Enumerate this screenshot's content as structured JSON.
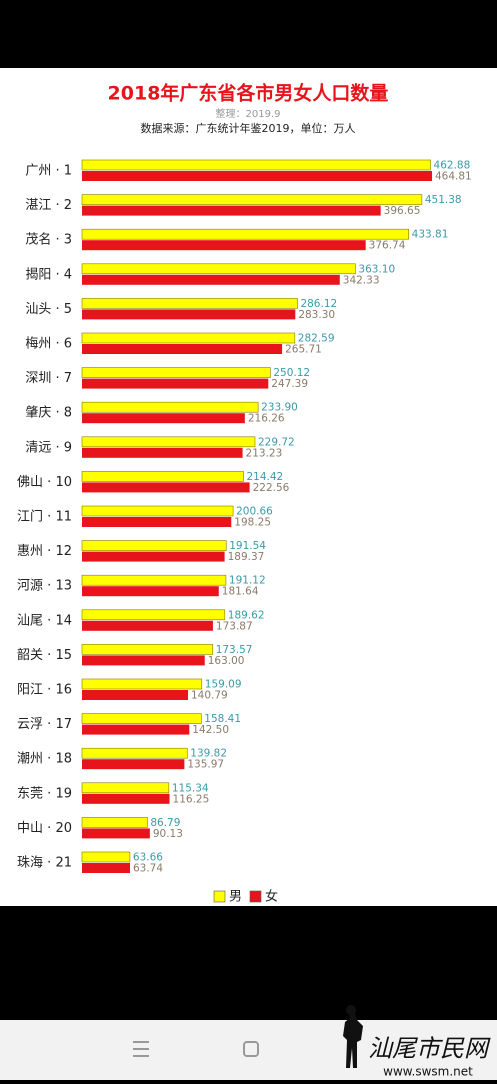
{
  "chart_data": {
    "type": "bar",
    "orientation": "horizontal",
    "title": "2018年广东省各市男女人口数量",
    "subtitle": "整理：2019.9",
    "source": "数据来源：广东统计年鉴2019，单位：万人",
    "categories": [
      "广州 · 1",
      "湛江 · 2",
      "茂名 · 3",
      "揭阳 · 4",
      "汕头 · 5",
      "梅州 · 6",
      "深圳 · 7",
      "肇庆 · 8",
      "清远 · 9",
      "佛山 · 10",
      "江门 · 11",
      "惠州 · 12",
      "河源 · 13",
      "汕尾 · 14",
      "韶关 · 15",
      "阳江 · 16",
      "云浮 · 17",
      "潮州 · 18",
      "东莞 · 19",
      "中山 · 20",
      "珠海 · 21"
    ],
    "series": [
      {
        "name": "男",
        "color": "#ffff00",
        "label_color": "#3a9aa8",
        "values": [
          462.88,
          451.38,
          433.81,
          363.1,
          286.12,
          282.59,
          250.12,
          233.9,
          229.72,
          214.42,
          200.66,
          191.54,
          191.12,
          189.62,
          173.57,
          159.09,
          158.41,
          139.82,
          115.34,
          86.79,
          63.66
        ],
        "value_labels": [
          "462.88",
          "451.38",
          "433.81",
          "363.10",
          "286.12",
          "282.59",
          "250.12",
          "233.90",
          "229.72",
          "214.42",
          "200.66",
          "191.54",
          "191.12",
          "189.62",
          "173.57",
          "159.09",
          "158.41",
          "139.82",
          "115.34",
          "86.79",
          "63.66"
        ]
      },
      {
        "name": "女",
        "color": "#e8141b",
        "label_color": "#8a7a6a",
        "values": [
          464.81,
          396.65,
          376.74,
          342.33,
          283.3,
          265.71,
          247.39,
          216.26,
          213.23,
          222.56,
          198.25,
          189.37,
          181.64,
          173.87,
          163.0,
          140.79,
          142.5,
          135.97,
          116.25,
          90.13,
          63.74
        ],
        "value_labels": [
          "464.81",
          "396.65",
          "376.74",
          "342.33",
          "283.30",
          "265.71",
          "247.39",
          "216.26",
          "213.23",
          "222.56",
          "198.25",
          "189.37",
          "181.64",
          "173.87",
          "163.00",
          "140.79",
          "142.50",
          "135.97",
          "116.25",
          "90.13",
          "63.74"
        ]
      }
    ]
  },
  "watermark": {
    "text": "汕尾市民网",
    "url": "www.swsm.net"
  }
}
